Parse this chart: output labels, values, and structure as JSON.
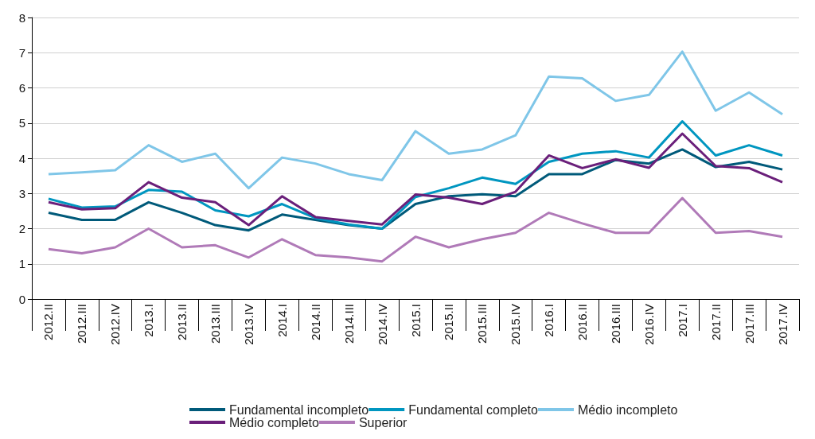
{
  "chart_data": {
    "type": "line",
    "categories": [
      "2012.II",
      "2012.III",
      "2012.IV",
      "2013.I",
      "2013.II",
      "2013.III",
      "2013.IV",
      "2014.I",
      "2014.II",
      "2014.III",
      "2014.IV",
      "2015.I",
      "2015.II",
      "2015.III",
      "2015.IV",
      "2016.I",
      "2016.II",
      "2016.III",
      "2016.IV",
      "2017.I",
      "2017.II",
      "2017.III",
      "2017.IV"
    ],
    "series": [
      {
        "name": "Fundamental incompleto",
        "color": "#005a7a",
        "values": [
          2.45,
          2.25,
          2.25,
          2.75,
          2.45,
          2.1,
          1.95,
          2.4,
          2.25,
          2.1,
          2.0,
          2.7,
          2.92,
          2.98,
          2.92,
          3.55,
          3.55,
          3.95,
          3.85,
          4.25,
          3.75,
          3.9,
          3.68
        ]
      },
      {
        "name": "Fundamental completo",
        "color": "#0096c0",
        "values": [
          2.85,
          2.6,
          2.63,
          3.1,
          3.05,
          2.52,
          2.35,
          2.7,
          2.3,
          2.12,
          2.0,
          2.9,
          3.15,
          3.45,
          3.27,
          3.9,
          4.13,
          4.2,
          4.02,
          5.05,
          4.08,
          4.37,
          4.08
        ]
      },
      {
        "name": "Médio incompleto",
        "color": "#7fc6e8",
        "values": [
          3.55,
          3.6,
          3.66,
          4.37,
          3.9,
          4.13,
          3.15,
          4.02,
          3.85,
          3.55,
          3.38,
          4.77,
          4.13,
          4.25,
          4.65,
          6.32,
          6.27,
          5.63,
          5.8,
          7.03,
          5.35,
          5.87,
          5.25
        ]
      },
      {
        "name": "Médio completo",
        "color": "#6a1f7a",
        "values": [
          2.75,
          2.55,
          2.58,
          3.32,
          2.88,
          2.75,
          2.1,
          2.92,
          2.33,
          2.22,
          2.12,
          2.97,
          2.88,
          2.7,
          3.05,
          4.08,
          3.72,
          3.97,
          3.73,
          4.7,
          3.78,
          3.72,
          3.32
        ]
      },
      {
        "name": "Superior",
        "color": "#b07ab8",
        "values": [
          1.42,
          1.3,
          1.47,
          2.0,
          1.47,
          1.53,
          1.18,
          1.7,
          1.25,
          1.18,
          1.07,
          1.77,
          1.47,
          1.7,
          1.88,
          2.45,
          2.15,
          1.88,
          1.88,
          2.87,
          1.88,
          1.93,
          1.77
        ]
      }
    ],
    "ylim": [
      0,
      8
    ],
    "yticks": [
      0,
      1,
      2,
      3,
      4,
      5,
      6,
      7,
      8
    ],
    "grid": "y",
    "legend": "bottom",
    "marker": "none",
    "line_style": "solid"
  }
}
